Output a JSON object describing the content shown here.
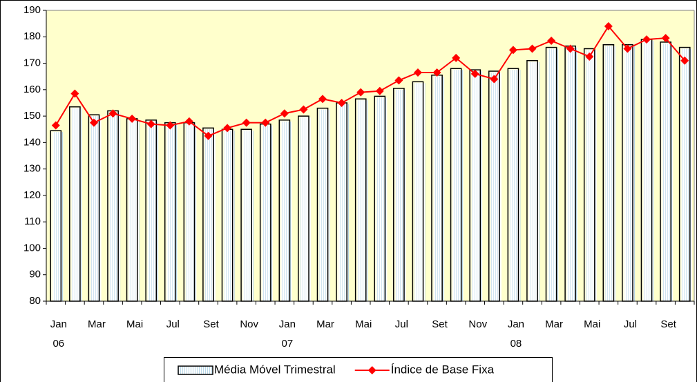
{
  "chart_data": {
    "type": "bar_line",
    "categories": [
      "Jan",
      null,
      "Mar",
      null,
      "Mai",
      null,
      "Jul",
      null,
      "Set",
      null,
      "Nov",
      null,
      "Jan",
      null,
      "Mar",
      null,
      "Mai",
      null,
      "Jul",
      null,
      "Set",
      null,
      "Nov",
      null,
      "Jan",
      null,
      "Mar",
      null,
      "Mai",
      null,
      "Jul",
      null,
      "Set",
      null
    ],
    "year_labels": [
      "06",
      null,
      null,
      null,
      null,
      null,
      null,
      null,
      null,
      null,
      null,
      null,
      "07",
      null,
      null,
      null,
      null,
      null,
      null,
      null,
      null,
      null,
      null,
      null,
      "08",
      null,
      null,
      null,
      null,
      null,
      null,
      null,
      null,
      null
    ],
    "series": [
      {
        "name": "Média Móvel Trimestral",
        "type": "bar",
        "color": "#ffffff",
        "values": [
          144.5,
          153.5,
          150.5,
          152,
          149,
          148.5,
          147.5,
          147.5,
          145.5,
          145,
          145,
          147,
          148.5,
          150,
          153,
          155,
          156.5,
          157.5,
          160.5,
          163,
          165.5,
          168,
          167.5,
          167,
          168,
          171,
          176,
          176.5,
          175.5,
          177,
          177,
          179,
          178,
          176
        ]
      },
      {
        "name": "Índice de Base Fixa",
        "type": "line",
        "color": "#ff0000",
        "values": [
          146.5,
          158.5,
          147.5,
          151,
          149,
          147,
          146.5,
          148,
          142.5,
          145.5,
          147.5,
          147.5,
          151,
          152.5,
          156.5,
          155,
          159,
          159.5,
          163.5,
          166.5,
          166.5,
          172,
          166,
          164,
          175,
          175.5,
          178.5,
          175.5,
          172.5,
          184,
          175.5,
          179,
          179.5,
          171
        ]
      }
    ],
    "ylim": [
      80,
      190
    ],
    "yticks": [
      80,
      90,
      100,
      110,
      120,
      130,
      140,
      150,
      160,
      170,
      180,
      190
    ],
    "plot_background": "#ffffcc",
    "legend": "bottom"
  }
}
